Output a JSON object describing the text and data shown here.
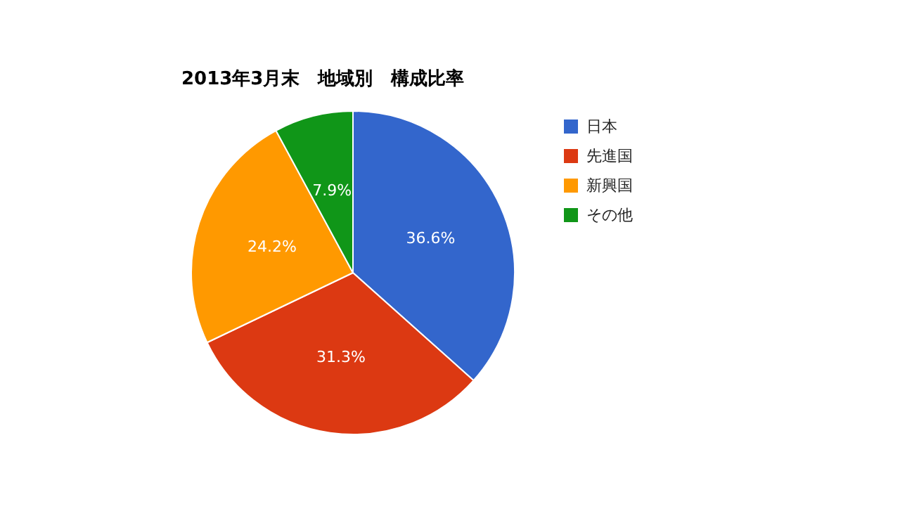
{
  "chart_data": {
    "type": "pie",
    "title": "2013年3月末　地域別　構成比率",
    "categories": [
      "日本",
      "先進国",
      "新興国",
      "その他"
    ],
    "values": [
      36.6,
      31.3,
      24.2,
      7.9
    ],
    "value_labels": [
      "36.6%",
      "31.3%",
      "24.2%",
      "7.9%"
    ],
    "colors": [
      "#3366cc",
      "#dc3912",
      "#ff9900",
      "#109618"
    ],
    "legend": "right"
  }
}
